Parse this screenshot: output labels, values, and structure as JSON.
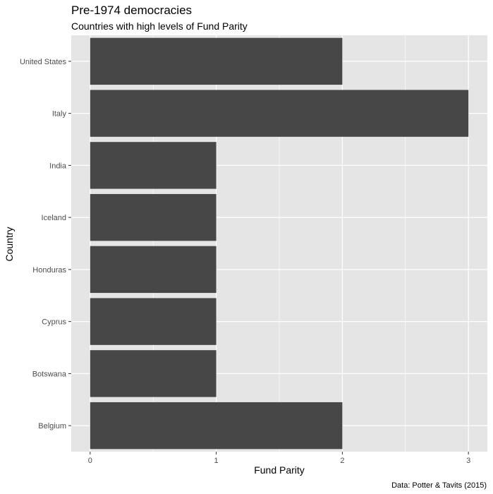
{
  "chart_data": {
    "type": "bar",
    "orientation": "horizontal",
    "title": "Pre-1974 democracies",
    "subtitle": "Countries with high levels of Fund Parity",
    "xlabel": "Fund Parity",
    "ylabel": "Country",
    "caption": "Data: Potter & Tavits (2015)",
    "categories": [
      "United States",
      "Italy",
      "India",
      "Iceland",
      "Honduras",
      "Cyprus",
      "Botswana",
      "Belgium"
    ],
    "values": [
      2,
      3,
      1,
      1,
      1,
      1,
      1,
      2
    ],
    "xlim": [
      -0.15,
      3.15
    ],
    "xticks": [
      "0",
      "1",
      "2",
      "3"
    ],
    "grid": true,
    "bar_color": "#474747",
    "panel_color": "#e5e5e5",
    "grid_color": "#ffffff"
  }
}
